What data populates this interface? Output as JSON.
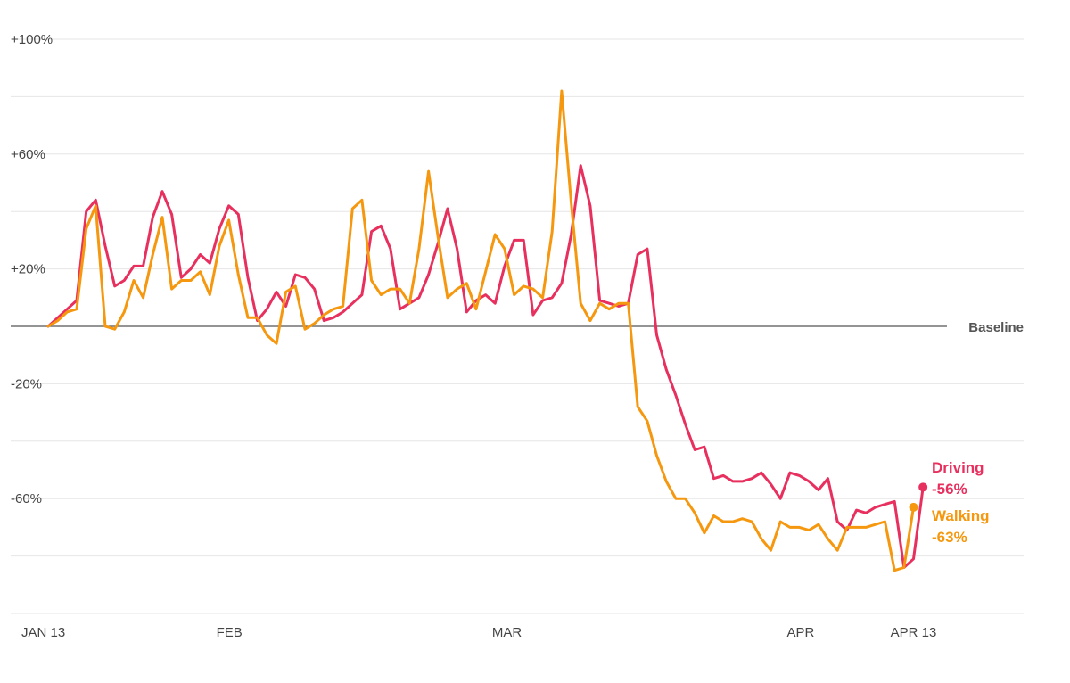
{
  "colors": {
    "driving": "#e8305f",
    "walking": "#f5980f",
    "grid": "#e6e6e6",
    "baseline": "#555555"
  },
  "chart_data": {
    "type": "line",
    "title": "",
    "xlabel": "",
    "ylabel": "",
    "ylim": [
      -100,
      100
    ],
    "xlim": [
      0,
      100
    ],
    "grid": true,
    "legend_position": "right-of-line-ends",
    "y_ticks": [
      {
        "value": 100,
        "label": "+100%"
      },
      {
        "value": 60,
        "label": "+60%"
      },
      {
        "value": 20,
        "label": "+20%"
      },
      {
        "value": -20,
        "label": "-20%"
      },
      {
        "value": -60,
        "label": "-60%"
      }
    ],
    "y_grid_values": [
      100,
      80,
      60,
      40,
      20,
      -20,
      -40,
      -60,
      -80,
      -100
    ],
    "x_ticks": [
      {
        "value": 0,
        "label": "JAN 13"
      },
      {
        "value": 19,
        "label": "FEB"
      },
      {
        "value": 48,
        "label": "MAR"
      },
      {
        "value": 79,
        "label": "APR"
      },
      {
        "value": 91,
        "label": "APR 13"
      }
    ],
    "baseline": {
      "value": 0,
      "label": "Baseline"
    },
    "series": [
      {
        "name": "Driving",
        "end_label": "-56%",
        "color": "#e8305f",
        "values": [
          0,
          3,
          6,
          9,
          40,
          44,
          28,
          14,
          16,
          21,
          21,
          38,
          47,
          39,
          17,
          20,
          25,
          22,
          34,
          42,
          39,
          17,
          2,
          6,
          12,
          7,
          18,
          17,
          13,
          2,
          3,
          5,
          8,
          11,
          33,
          35,
          27,
          6,
          8,
          10,
          18,
          29,
          41,
          27,
          5,
          9,
          11,
          8,
          21,
          30,
          30,
          4,
          9,
          10,
          15,
          32,
          56,
          42,
          9,
          8,
          7,
          8,
          25,
          27,
          -3,
          -15,
          -24,
          -34,
          -43,
          -42,
          -53,
          -52,
          -54,
          -54,
          -53,
          -51,
          -55,
          -60,
          -51,
          -52,
          -54,
          -57,
          -53,
          -68,
          -71,
          -64,
          -65,
          -63,
          -62,
          -61,
          -84,
          -81,
          -56
        ]
      },
      {
        "name": "Walking",
        "end_label": "-63%",
        "color": "#f5980f",
        "values": [
          0,
          2,
          5,
          6,
          34,
          42,
          0,
          -1,
          5,
          16,
          10,
          25,
          38,
          13,
          16,
          16,
          19,
          11,
          28,
          37,
          18,
          3,
          3,
          -3,
          -6,
          12,
          14,
          -1,
          1,
          4,
          6,
          7,
          41,
          44,
          16,
          11,
          13,
          13,
          8,
          27,
          54,
          31,
          10,
          13,
          15,
          6,
          19,
          32,
          27,
          11,
          14,
          13,
          10,
          33,
          82,
          43,
          8,
          2,
          8,
          6,
          8,
          8,
          -28,
          -33,
          -45,
          -54,
          -60,
          -60,
          -65,
          -72,
          -66,
          -68,
          -68,
          -67,
          -68,
          -74,
          -78,
          -68,
          -70,
          -70,
          -71,
          -69,
          -74,
          -78,
          -70,
          -70,
          -70,
          -69,
          -68,
          -85,
          -84,
          -63
        ]
      }
    ]
  }
}
